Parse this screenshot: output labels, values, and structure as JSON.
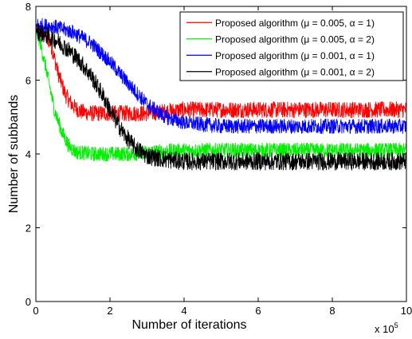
{
  "chart_data": {
    "type": "line",
    "xlabel": "Number of iterations",
    "ylabel": "Number of subbands",
    "x_multiplier": "x 10",
    "x_multiplier_exp": "5",
    "xlim": [
      0,
      10
    ],
    "ylim": [
      0,
      8
    ],
    "xticks": [
      "0",
      "2",
      "4",
      "6",
      "8",
      "10"
    ],
    "yticks": [
      "0",
      "2",
      "4",
      "6",
      "8"
    ],
    "grid": false,
    "legend_position": "top-right",
    "x_unit_scale": 100000,
    "series": [
      {
        "name": "Proposed algorithm (μ = 0.005, α = 1)",
        "color": "#ff0000",
        "x": [
          0,
          0.2,
          0.4,
          0.6,
          0.8,
          1.0,
          1.2,
          1.5,
          2.0,
          3.0,
          4.0,
          6.0,
          8.0,
          10.0
        ],
        "y": [
          7.4,
          7.3,
          7.0,
          6.2,
          5.6,
          5.3,
          5.15,
          5.1,
          5.1,
          5.1,
          5.2,
          5.2,
          5.2,
          5.2
        ],
        "noise": 0.22
      },
      {
        "name": "Proposed algorithm (μ = 0.005, α = 2)",
        "color": "#00ee00",
        "x": [
          0,
          0.1,
          0.3,
          0.5,
          0.7,
          0.9,
          1.1,
          1.5,
          2.0,
          2.6,
          3.0,
          4.0,
          6.0,
          8.0,
          10.0
        ],
        "y": [
          7.3,
          7.1,
          6.2,
          5.2,
          4.6,
          4.2,
          4.05,
          4.0,
          4.0,
          4.0,
          4.05,
          4.1,
          4.1,
          4.1,
          4.1
        ],
        "noise": 0.2
      },
      {
        "name": "Proposed algorithm (μ = 0.001, α = 1)",
        "color": "#0000ff",
        "x": [
          0,
          0.5,
          1.0,
          1.5,
          2.0,
          2.5,
          3.0,
          3.5,
          4.0,
          5.0,
          6.0,
          8.0,
          10.0
        ],
        "y": [
          7.5,
          7.45,
          7.3,
          7.0,
          6.5,
          5.9,
          5.35,
          5.0,
          4.85,
          4.75,
          4.75,
          4.75,
          4.75
        ],
        "noise": 0.2
      },
      {
        "name": "Proposed algorithm (μ = 0.001, α = 2)",
        "color": "#000000",
        "x": [
          0,
          0.3,
          0.6,
          0.9,
          1.2,
          1.5,
          1.8,
          2.1,
          2.4,
          2.7,
          3.0,
          3.5,
          4.0,
          6.0,
          8.0,
          10.0
        ],
        "y": [
          7.35,
          7.2,
          7.05,
          6.8,
          6.5,
          6.1,
          5.6,
          5.0,
          4.5,
          4.15,
          3.95,
          3.85,
          3.8,
          3.8,
          3.8,
          3.8
        ],
        "noise": 0.24
      }
    ]
  }
}
